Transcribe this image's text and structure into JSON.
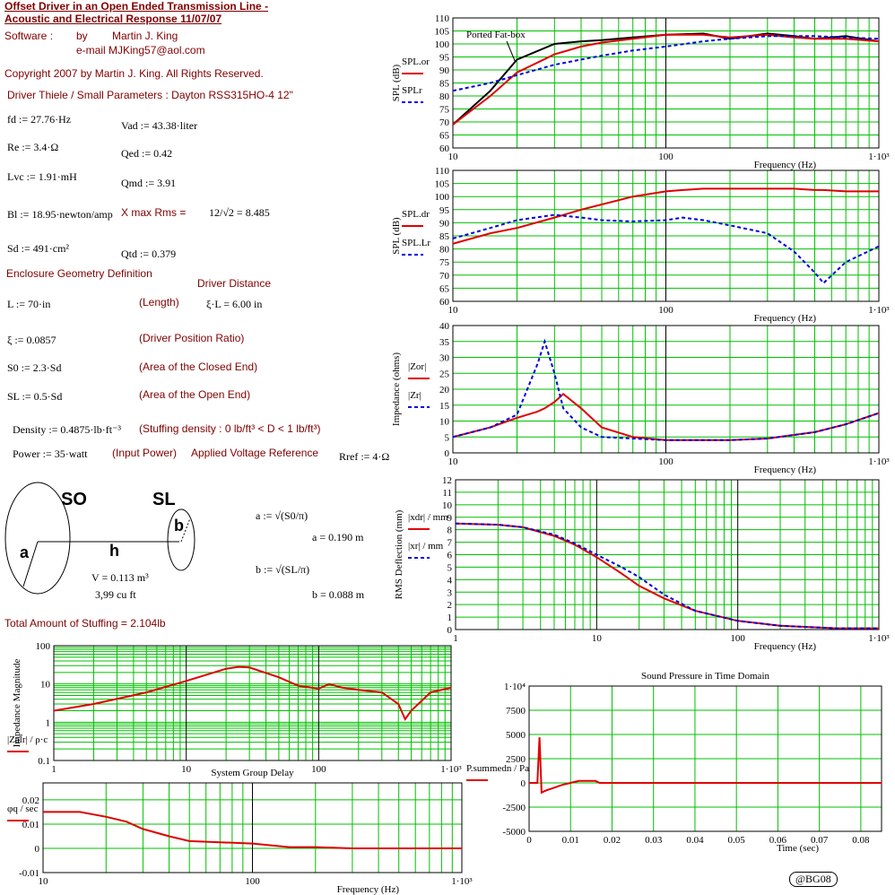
{
  "worksheet": {
    "title1": "Offset Driver in an Open Ended Transmission Line -",
    "title2": "Acoustic and Electrical Response  11/07/07",
    "software": "Software :",
    "by": "by",
    "author": "Martin J. King",
    "email": "e-mail  MJKing57@aol.com",
    "copyright": "Copyright 2007 by Martin J. King. All Rights Reserved.",
    "driver_heading": "Driver Thiele / Small Parameters : Dayton RSS315HO-4 12\"",
    "fd": "fd := 27.76·Hz",
    "vad": "Vad := 43.38·liter",
    "re": "Re := 3.4·Ω",
    "qed": "Qed := 0.42",
    "lvc": "Lvc := 1.91·mH",
    "qmd": "Qmd := 3.91",
    "bl": "Bl := 18.95·newton/amp",
    "xmax_label": "X max Rms =",
    "xmax": "12/√2 = 8.485",
    "sd": "Sd := 491·cm²",
    "qtd": "Qtd := 0.379",
    "enclosure_heading": "Enclosure Geometry Definition",
    "driver_distance": "Driver Distance",
    "length": "L := 70·in",
    "length_note": "(Length)",
    "xi_l": "ξ·L = 6.00 in",
    "xi": "ξ := 0.0857",
    "xi_note": "(Driver Position Ratio)",
    "s0": "S0 := 2.3·Sd",
    "s0_note": "(Area of the Closed End)",
    "sl": "SL := 0.5·Sd",
    "sl_note": "(Area of the Open End)",
    "density": "Density := 0.4875·lb·ft⁻³",
    "density_note": "(Stuffing density : 0 lb/ft³ < D < 1 lb/ft³)",
    "power": "Power := 35·watt",
    "power_note": "(Input Power)",
    "voltage_ref": "Applied Voltage Reference",
    "rref": "Rref := 4·Ω",
    "diagram": {
      "s0": "SO",
      "sl": "SL",
      "a": "a",
      "h": "h",
      "b": "b",
      "volume": "V = 0.113 m³",
      "cuft": "3,99 cu ft"
    },
    "a_def": "a := √(S0/π)",
    "a_val": "a = 0.190 m",
    "b_def": "b := √(SL/π)",
    "b_val": "b = 0.088 m",
    "stuffing": "Total Amount of Stuffing = 2.104lb",
    "badge": "@BG08"
  },
  "chart_data": [
    {
      "type": "line",
      "ylabel": "SPL (dB)",
      "xlabel": "Frequency (Hz)",
      "xlog": true,
      "grid": true,
      "x": [
        10,
        15,
        20,
        30,
        40,
        50,
        70,
        100,
        150,
        200,
        300,
        400,
        500,
        700,
        1000
      ],
      "xlim": [
        10,
        1000
      ],
      "xticks": [
        10,
        100,
        {
          "value": 1000,
          "label": "1·10³"
        }
      ],
      "ylim": [
        60,
        110
      ],
      "yticks": [
        60,
        65,
        70,
        75,
        80,
        85,
        90,
        95,
        100,
        105,
        110
      ],
      "series": [
        {
          "name": "Ported Fat-box",
          "color": "#000000",
          "style": "solid",
          "values": [
            69,
            82,
            94,
            100,
            101,
            101.5,
            102.5,
            103.5,
            104,
            102,
            104,
            103,
            102,
            103,
            101
          ]
        },
        {
          "name": "SPL.or",
          "color": "#e00000",
          "style": "solid",
          "values": [
            69,
            80,
            89,
            96,
            99,
            100.5,
            102,
            103.5,
            103.5,
            102.5,
            103.5,
            102.5,
            102,
            102,
            101
          ]
        },
        {
          "name": "SPLr",
          "color": "#0000e0",
          "style": "dashed",
          "values": [
            82,
            85,
            88,
            92,
            94,
            95.5,
            97.5,
            99,
            101,
            102,
            103,
            103,
            103,
            102.5,
            102
          ]
        }
      ]
    },
    {
      "type": "line",
      "ylabel": "SPL (dB)",
      "xlabel": "Frequency (Hz)",
      "xlog": true,
      "grid": true,
      "x": [
        10,
        15,
        20,
        30,
        40,
        50,
        70,
        100,
        120,
        150,
        200,
        300,
        400,
        500,
        550,
        700,
        1000
      ],
      "xlim": [
        10,
        1000
      ],
      "xticks": [
        10,
        100,
        {
          "value": 1000,
          "label": "1·10³"
        }
      ],
      "ylim": [
        60,
        110
      ],
      "yticks": [
        60,
        65,
        70,
        75,
        80,
        85,
        90,
        95,
        100,
        105,
        110
      ],
      "series": [
        {
          "name": "SPL.dr",
          "color": "#e00000",
          "style": "solid",
          "values": [
            82,
            86,
            88,
            92,
            95,
            97,
            100,
            102,
            102.5,
            103,
            103,
            103,
            103,
            102.5,
            102.5,
            102,
            102
          ]
        },
        {
          "name": "SPL.Lr",
          "color": "#0000e0",
          "style": "dashed",
          "values": [
            84,
            88,
            91,
            93,
            92,
            91,
            90.5,
            91,
            92,
            91,
            89,
            86,
            79,
            71,
            67,
            75,
            81
          ]
        }
      ]
    },
    {
      "type": "line",
      "ylabel": "Impedance (ohms)",
      "xlabel": "Frequency (Hz)",
      "xlog": true,
      "grid": true,
      "x": [
        10,
        15,
        20,
        25,
        27,
        30,
        33,
        40,
        50,
        70,
        100,
        200,
        300,
        500,
        700,
        1000
      ],
      "xlim": [
        10,
        1000
      ],
      "xticks": [
        10,
        100,
        {
          "value": 1000,
          "label": "1·10³"
        }
      ],
      "ylim": [
        0,
        40
      ],
      "yticks": [
        0,
        5,
        10,
        15,
        20,
        25,
        30,
        35,
        40
      ],
      "series": [
        {
          "name": "|Zor|",
          "color": "#e00000",
          "style": "solid",
          "values": [
            5,
            8,
            11,
            13,
            14,
            16,
            18.5,
            14,
            8,
            5,
            4,
            4,
            4.5,
            6.5,
            9,
            12.5
          ]
        },
        {
          "name": "|Zr|",
          "color": "#0000e0",
          "style": "dashed",
          "values": [
            5,
            8,
            12,
            28,
            35,
            25,
            14,
            8,
            5,
            4.5,
            4,
            4,
            4.5,
            6.5,
            9,
            12.5
          ]
        }
      ]
    },
    {
      "type": "line",
      "ylabel": "RMS Deflection (mm)",
      "xlabel": "Frequency (Hz)",
      "xlog": true,
      "grid": true,
      "x": [
        1,
        2,
        3,
        5,
        7,
        10,
        15,
        20,
        30,
        50,
        100,
        200,
        500,
        1000
      ],
      "xlim": [
        1,
        1000
      ],
      "xticks": [
        1,
        10,
        100,
        {
          "value": 1000,
          "label": "1·10³"
        }
      ],
      "ylim": [
        0,
        12
      ],
      "yticks": [
        0,
        1,
        2,
        3,
        4,
        5,
        6,
        7,
        8,
        9,
        10,
        11,
        12
      ],
      "series": [
        {
          "name": "|xdr| / mm",
          "color": "#e00000",
          "style": "solid",
          "values": [
            8.5,
            8.4,
            8.2,
            7.5,
            6.8,
            5.8,
            4.5,
            3.5,
            2.5,
            1.5,
            0.7,
            0.3,
            0.1,
            0.1
          ]
        },
        {
          "name": "|xr| / mm",
          "color": "#0000e0",
          "style": "dashed",
          "values": [
            8.5,
            8.4,
            8.2,
            7.6,
            6.9,
            6.0,
            5.0,
            4.2,
            2.8,
            1.5,
            0.7,
            0.3,
            0.1,
            0.1
          ]
        }
      ]
    },
    {
      "type": "line",
      "ylabel": "Impedance Magnitude",
      "xlog": true,
      "ylog": true,
      "grid": true,
      "x": [
        1,
        2,
        5,
        10,
        20,
        25,
        30,
        50,
        70,
        100,
        120,
        150,
        200,
        300,
        400,
        450,
        500,
        700,
        1000
      ],
      "xlim": [
        1,
        1000
      ],
      "xticks": [
        1,
        10,
        100,
        {
          "value": 1000,
          "label": "1·10³"
        }
      ],
      "ylim": [
        0.1,
        100
      ],
      "yticks": [
        0.1,
        1,
        10,
        100
      ],
      "series": [
        {
          "name": "|Zalr| / ρ·c",
          "color": "#e00000",
          "style": "solid",
          "values": [
            2,
            3,
            6,
            12,
            25,
            28,
            27,
            15,
            9,
            7.5,
            10,
            8,
            7,
            6,
            3,
            1.2,
            2,
            6,
            8
          ]
        }
      ]
    },
    {
      "type": "line",
      "title": "System Group Delay",
      "xlabel": "Frequency (Hz)",
      "xlog": true,
      "grid": true,
      "x": [
        10,
        15,
        20,
        25,
        30,
        40,
        50,
        70,
        100,
        150,
        200,
        300,
        500,
        700,
        1000
      ],
      "xlim": [
        10,
        1000
      ],
      "xticks": [
        10,
        100,
        {
          "value": 1000,
          "label": "1·10³"
        }
      ],
      "ylim": [
        -0.01,
        0.027
      ],
      "yticks": [
        -0.01,
        0,
        0.01,
        0.02
      ],
      "series": [
        {
          "name": "φq / sec",
          "color": "#e00000",
          "style": "solid",
          "values": [
            0.015,
            0.015,
            0.013,
            0.011,
            0.008,
            0.005,
            0.003,
            0.0025,
            0.002,
            0.0005,
            0.0005,
            0,
            0,
            0,
            0
          ]
        }
      ]
    },
    {
      "type": "line",
      "title": "Sound Pressure in Time Domain",
      "xlabel": "Time (sec)",
      "grid": true,
      "x": [
        0,
        0.001,
        0.002,
        0.0025,
        0.003,
        0.004,
        0.006,
        0.008,
        0.01,
        0.012,
        0.016,
        0.017,
        0.03,
        0.085
      ],
      "xlim": [
        0,
        0.085
      ],
      "xticks": [
        0,
        0.01,
        0.02,
        0.03,
        0.04,
        0.05,
        0.06,
        0.07,
        0.08
      ],
      "ylim": [
        -5000,
        10000
      ],
      "yticks": [
        -5000,
        -2500,
        0,
        2500,
        5000,
        7500,
        {
          "value": 10000,
          "label": "1·10⁴"
        }
      ],
      "series": [
        {
          "name": "P.summedn / Pa",
          "color": "#e00000",
          "style": "solid",
          "values": [
            0,
            0,
            0,
            4700,
            -1000,
            -800,
            -500,
            -200,
            0,
            200,
            200,
            0,
            0,
            0
          ]
        }
      ]
    }
  ]
}
